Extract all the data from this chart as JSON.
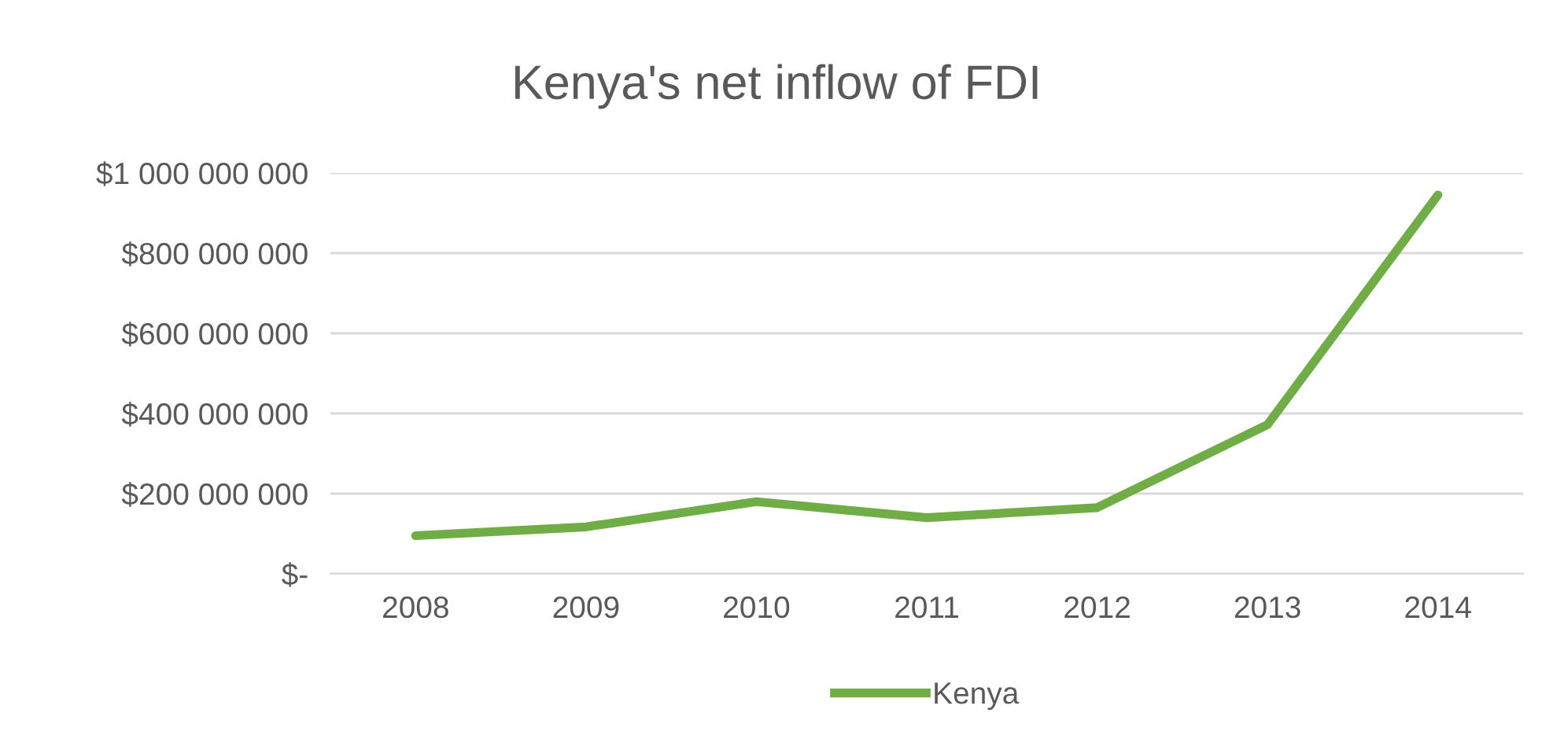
{
  "chart_data": {
    "type": "line",
    "title": "Kenya's net inflow of FDI",
    "categories": [
      "2008",
      "2009",
      "2010",
      "2011",
      "2012",
      "2013",
      "2014"
    ],
    "series": [
      {
        "name": "Kenya",
        "color": "#70ad47",
        "values": [
          95000000,
          117000000,
          180000000,
          140000000,
          165000000,
          372000000,
          945000000
        ]
      }
    ],
    "ylim": [
      0,
      1000000000
    ],
    "yticks": [
      {
        "value": 0,
        "label": "$-"
      },
      {
        "value": 200000000,
        "label": "$200 000 000"
      },
      {
        "value": 400000000,
        "label": "$400 000 000"
      },
      {
        "value": 600000000,
        "label": "$600 000 000"
      },
      {
        "value": 800000000,
        "label": "$800 000 000"
      },
      {
        "value": 1000000000,
        "label": "$1 000 000 000"
      }
    ],
    "grid": "y",
    "legend": "bottom",
    "line_style": "solid",
    "marker": "none"
  }
}
